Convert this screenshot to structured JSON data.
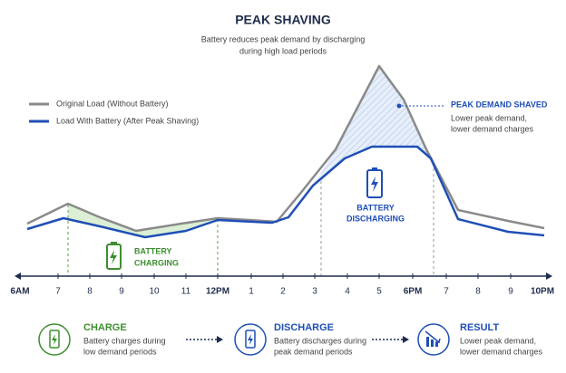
{
  "header": {
    "title": "PEAK SHAVING",
    "subtitle": [
      "Battery reduces peak demand by discharging",
      "during high load periods"
    ]
  },
  "legend": [
    "Original Load (Without Battery)",
    "Load With Battery (After Peak Shaving)"
  ],
  "annotations": {
    "peak": {
      "title": "PEAK DEMAND SHAVED",
      "text": [
        "Lower peak demand,",
        "lower demand charges"
      ]
    },
    "discharging": [
      "BATTERY",
      "DISCHARGING"
    ],
    "charging": [
      "BATTERY",
      "CHARGING"
    ]
  },
  "axis_labels": [
    "6AM",
    "7",
    "8",
    "9",
    "10",
    "11",
    "12PM",
    "1",
    "2",
    "3",
    "4",
    "5",
    "6PM",
    "7",
    "8",
    "9",
    "10PM"
  ],
  "steps": [
    {
      "title": "CHARGE",
      "text": [
        "Battery charges during",
        "low demand periods"
      ]
    },
    {
      "title": "DISCHARGE",
      "text": [
        "Battery discharges during",
        "peak demand periods"
      ]
    },
    {
      "title": "RESULT",
      "text": [
        "Lower peak demand,",
        "lower demand charges"
      ]
    }
  ]
}
